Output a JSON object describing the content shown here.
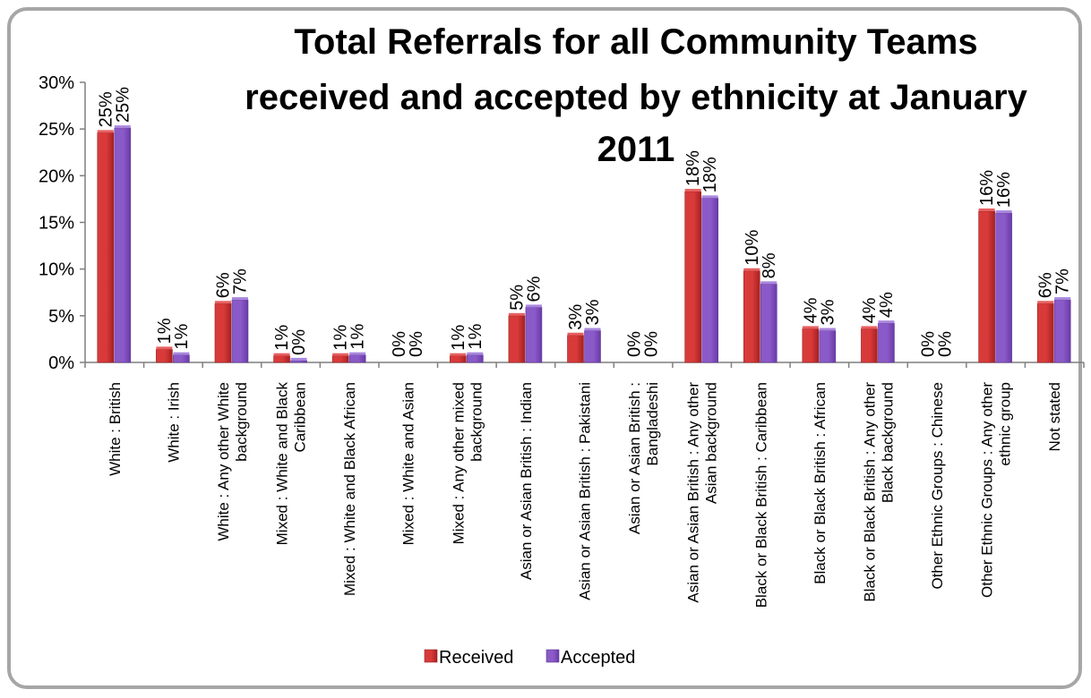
{
  "chart_data": {
    "type": "bar",
    "title_lines": [
      "Total Referrals for all Community Teams",
      "received and accepted by ethnicity at January",
      "2011"
    ],
    "xlabel": "",
    "ylabel": "",
    "ylim": [
      0,
      0.3
    ],
    "yticks": [
      "0%",
      "5%",
      "10%",
      "15%",
      "20%",
      "25%",
      "30%"
    ],
    "grid": false,
    "legend_position": "bottom",
    "categories": [
      [
        "White : British"
      ],
      [
        "White : Irish"
      ],
      [
        "White : Any other White",
        "background"
      ],
      [
        "Mixed : White and Black",
        "Caribbean"
      ],
      [
        "Mixed : White and Black African"
      ],
      [
        "Mixed : White and Asian"
      ],
      [
        "Mixed : Any other mixed",
        "background"
      ],
      [
        "Asian or Asian British : Indian"
      ],
      [
        "Asian or Asian British : Pakistani"
      ],
      [
        "Asian or Asian British :",
        "Bangladeshi"
      ],
      [
        "Asian or Asian British : Any other",
        "Asian background"
      ],
      [
        "Black or Black British : Caribbean"
      ],
      [
        "Black or Black British : African"
      ],
      [
        "Black or Black British : Any other",
        "Black background"
      ],
      [
        "Other Ethnic Groups : Chinese"
      ],
      [
        "Other Ethnic Groups : Any other",
        "ethnic group"
      ],
      [
        "Not stated"
      ]
    ],
    "series": [
      {
        "name": "Received",
        "color": "#d83a3a",
        "values": [
          0.246,
          0.014,
          0.063,
          0.007,
          0.007,
          0.0,
          0.007,
          0.05,
          0.029,
          0.0,
          0.183,
          0.098,
          0.036,
          0.036,
          0.0,
          0.162,
          0.063
        ],
        "labels": [
          "25%",
          "1%",
          "6%",
          "1%",
          "1%",
          "0%",
          "1%",
          "5%",
          "3%",
          "0%",
          "18%",
          "10%",
          "4%",
          "4%",
          "0%",
          "16%",
          "6%"
        ]
      },
      {
        "name": "Accepted",
        "color": "#8a5ac8",
        "values": [
          0.251,
          0.008,
          0.067,
          0.002,
          0.008,
          0.0,
          0.008,
          0.059,
          0.034,
          0.0,
          0.176,
          0.084,
          0.034,
          0.042,
          0.0,
          0.16,
          0.067
        ],
        "labels": [
          "25%",
          "1%",
          "7%",
          "0%",
          "1%",
          "0%",
          "1%",
          "6%",
          "3%",
          "0%",
          "18%",
          "8%",
          "3%",
          "4%",
          "0%",
          "16%",
          "7%"
        ]
      }
    ]
  }
}
